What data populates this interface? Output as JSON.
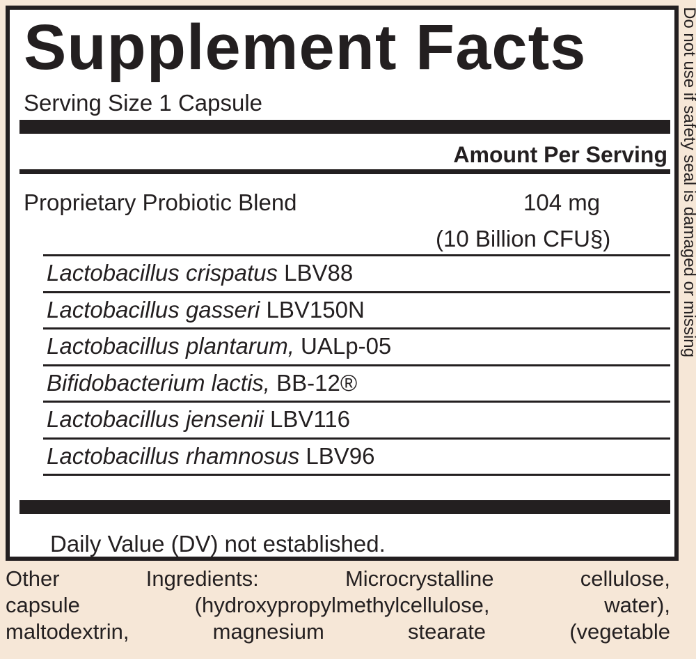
{
  "label": {
    "title": "Supplement Facts",
    "serving_size": "Serving Size 1 Capsule",
    "amount_per_serving_header": "Amount Per Serving",
    "blend": {
      "name": "Proprietary Probiotic Blend",
      "amount": "104 mg",
      "cfu": "(10 Billion CFU§)"
    },
    "strains": [
      {
        "species": "Lactobacillus crispatus",
        "strain": " LBV88"
      },
      {
        "species": "Lactobacillus gasseri",
        "strain": " LBV150N"
      },
      {
        "species": "Lactobacillus plantarum,",
        "strain": " UALp-05"
      },
      {
        "species": "Bifidobacterium lactis,",
        "strain": " BB-12®"
      },
      {
        "species": "Lactobacillus jensenii",
        "strain": " LBV116"
      },
      {
        "species": "Lactobacillus rhamnosus",
        "strain": " LBV96"
      }
    ],
    "daily_value_note": "Daily Value (DV) not established."
  },
  "other_ingredients": [
    "Other Ingredients: Microcrystalline cellulose,",
    "capsule (hydroxypropylmethylcellulose, water),",
    "maltodextrin, magnesium stearate (vegetable"
  ],
  "side_text": "Do not use if safety seal is damaged or missing",
  "colors": {
    "background": "#f6e7d7",
    "ink": "#231f20",
    "panel": "#ffffff"
  }
}
